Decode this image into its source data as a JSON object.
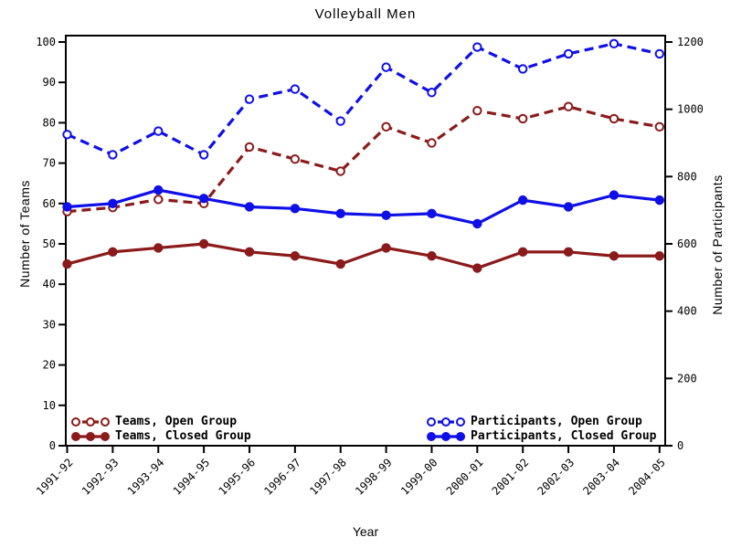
{
  "window": {
    "background": "#FFFFFF"
  },
  "chart_data": {
    "type": "line",
    "title": "Volleyball Men",
    "xlabel": "Year",
    "ylabel_left": "Number of Teams",
    "ylabel_right": "Number of Participants",
    "categories": [
      "1991-92",
      "1992-93",
      "1993-94",
      "1994-95",
      "1995-96",
      "1996-97",
      "1997-98",
      "1998-99",
      "1999-00",
      "2000-01",
      "2001-02",
      "2002-03",
      "2003-04",
      "2004-05"
    ],
    "left_axis": {
      "label": "Number of Teams",
      "min": 0,
      "max": 100,
      "ticks": [
        0,
        10,
        20,
        30,
        40,
        50,
        60,
        70,
        80,
        90,
        100
      ]
    },
    "right_axis": {
      "label": "Number of Participants",
      "min": 0,
      "max": 1200,
      "ticks": [
        0,
        200,
        400,
        600,
        800,
        1000,
        1200
      ]
    },
    "grid": false,
    "legend_position": "inside-bottom",
    "series": [
      {
        "name": "Teams, Open Group",
        "axis": "left",
        "color": "#8B1A1A",
        "line_style": "dashed",
        "marker": "open",
        "values": [
          58,
          59,
          61,
          60,
          74,
          71,
          68,
          79,
          75,
          83,
          81,
          84,
          81,
          79
        ]
      },
      {
        "name": "Teams, Closed Group",
        "axis": "left",
        "color": "#8B1A1A",
        "line_style": "solid",
        "marker": "filled",
        "values": [
          45,
          48,
          49,
          50,
          48,
          47,
          45,
          49,
          47,
          44,
          48,
          48,
          47,
          47
        ]
      },
      {
        "name": "Participants, Open Group",
        "axis": "right",
        "color": "#0F0FE8",
        "line_style": "dashed",
        "marker": "open",
        "values": [
          925,
          865,
          935,
          865,
          1030,
          1060,
          965,
          1125,
          1050,
          1185,
          1120,
          1165,
          1195,
          1165
        ]
      },
      {
        "name": "Participants, Closed Group",
        "axis": "right",
        "color": "#0F0FE8",
        "line_style": "solid",
        "marker": "filled",
        "values": [
          710,
          720,
          760,
          735,
          710,
          705,
          690,
          685,
          690,
          660,
          730,
          710,
          745,
          730
        ]
      }
    ]
  }
}
